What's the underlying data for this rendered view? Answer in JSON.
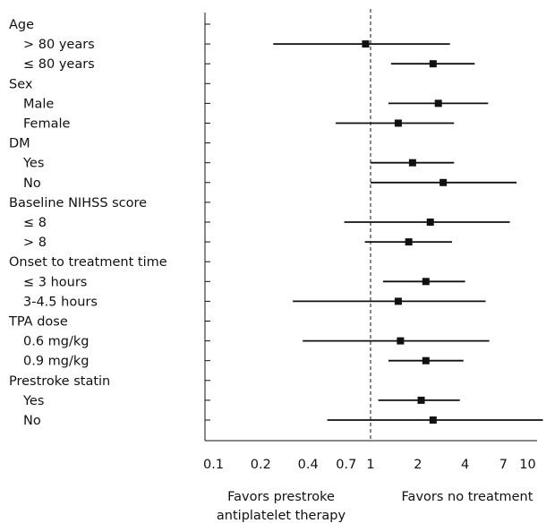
{
  "chart_data": {
    "type": "forest",
    "x_scale": "log",
    "xlim": [
      0.08,
      13
    ],
    "reference_line": 1,
    "x_ticks": [
      {
        "value": 0.1,
        "label": "0.1"
      },
      {
        "value": 0.2,
        "label": "0.2"
      },
      {
        "value": 0.4,
        "label": "0.4"
      },
      {
        "value": 0.7,
        "label": "0.7"
      },
      {
        "value": 1,
        "label": "1"
      },
      {
        "value": 2,
        "label": "2"
      },
      {
        "value": 4,
        "label": "4"
      },
      {
        "value": 7,
        "label": "7"
      },
      {
        "value": 10,
        "label": "10"
      }
    ],
    "left_note": [
      "Favors prestroke",
      "antiplatelet therapy"
    ],
    "right_note": [
      "Favors no treatment"
    ],
    "rows": [
      {
        "kind": "group",
        "label": "Age"
      },
      {
        "kind": "item",
        "label": "> 80 years",
        "est": 0.93,
        "lo": 0.24,
        "hi": 3.2
      },
      {
        "kind": "item",
        "label": "≤ 80 years",
        "est": 2.5,
        "lo": 1.35,
        "hi": 4.6
      },
      {
        "kind": "group",
        "label": "Sex"
      },
      {
        "kind": "item",
        "label": "Male",
        "est": 2.7,
        "lo": 1.3,
        "hi": 5.6
      },
      {
        "kind": "item",
        "label": "Female",
        "est": 1.5,
        "lo": 0.6,
        "hi": 3.4
      },
      {
        "kind": "group",
        "label": "DM"
      },
      {
        "kind": "item",
        "label": "Yes",
        "est": 1.85,
        "lo": 1.0,
        "hi": 3.4
      },
      {
        "kind": "item",
        "label": "No",
        "est": 2.9,
        "lo": 1.0,
        "hi": 8.5
      },
      {
        "kind": "group",
        "label": "Baseline NIHSS score"
      },
      {
        "kind": "item",
        "label": "≤ 8",
        "est": 2.4,
        "lo": 0.68,
        "hi": 7.7
      },
      {
        "kind": "item",
        "label": "> 8",
        "est": 1.75,
        "lo": 0.92,
        "hi": 3.3
      },
      {
        "kind": "group",
        "label": "Onset to treatment time"
      },
      {
        "kind": "item",
        "label": "≤ 3 hours",
        "est": 2.25,
        "lo": 1.2,
        "hi": 4.0
      },
      {
        "kind": "item",
        "label": "3-4.5 hours",
        "est": 1.5,
        "lo": 0.32,
        "hi": 5.4
      },
      {
        "kind": "group",
        "label": "TPA dose"
      },
      {
        "kind": "item",
        "label": "0.6 mg/kg",
        "est": 1.55,
        "lo": 0.37,
        "hi": 5.7
      },
      {
        "kind": "item",
        "label": "0.9 mg/kg",
        "est": 2.25,
        "lo": 1.3,
        "hi": 3.9
      },
      {
        "kind": "group",
        "label": "Prestroke statin"
      },
      {
        "kind": "item",
        "label": "Yes",
        "est": 2.1,
        "lo": 1.12,
        "hi": 3.7
      },
      {
        "kind": "item",
        "label": "No",
        "est": 2.5,
        "lo": 0.53,
        "hi": 12.5
      }
    ]
  }
}
